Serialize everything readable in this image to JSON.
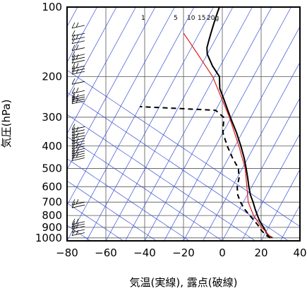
{
  "chart_data": {
    "type": "skew-t",
    "xlabel": "気温(実線), 露点(破線)",
    "ylabel": "気圧(hPa)",
    "xlim": [
      -80,
      40
    ],
    "ylim": [
      1030,
      100
    ],
    "yscale": "log",
    "x_ticks": [
      -80,
      -60,
      -40,
      -20,
      0,
      20,
      40
    ],
    "y_ticks": [
      100,
      200,
      300,
      400,
      500,
      600,
      700,
      800,
      900,
      1000
    ],
    "mixing_ratio_labels": [
      "1",
      "5",
      "10",
      "15",
      "20g"
    ],
    "colors": {
      "isotherm": "#3b4fd8",
      "line": "#000000",
      "reference": "#e02020",
      "grid": "#555555"
    },
    "series": [
      {
        "style": "solid",
        "points": [
          [
            1000,
            25
          ],
          [
            975,
            22
          ],
          [
            950,
            20.5
          ],
          [
            925,
            19
          ],
          [
            900,
            17.5
          ],
          [
            850,
            14
          ],
          [
            800,
            11
          ],
          [
            750,
            8
          ],
          [
            700,
            5
          ],
          [
            650,
            1.5
          ],
          [
            600,
            -1.5
          ],
          [
            550,
            -4.5
          ],
          [
            500,
            -8
          ],
          [
            450,
            -12
          ],
          [
            400,
            -17
          ],
          [
            350,
            -23
          ],
          [
            300,
            -30.5
          ],
          [
            250,
            -39
          ],
          [
            225,
            -44
          ],
          [
            200,
            -47.5
          ],
          [
            180,
            -54
          ],
          [
            160,
            -60
          ],
          [
            150,
            -62
          ],
          [
            140,
            -63
          ],
          [
            130,
            -64
          ],
          [
            120,
            -65
          ],
          [
            110,
            -66
          ],
          [
            100,
            -67
          ]
        ]
      },
      {
        "style": "dashed",
        "points": [
          [
            1000,
            24
          ],
          [
            975,
            21
          ],
          [
            950,
            19
          ],
          [
            925,
            17
          ],
          [
            900,
            15.5
          ],
          [
            850,
            11.5
          ],
          [
            800,
            7
          ],
          [
            750,
            2.5
          ],
          [
            700,
            -1.5
          ],
          [
            650,
            -5
          ],
          [
            600,
            -7.5
          ],
          [
            550,
            -9
          ],
          [
            500,
            -12
          ],
          [
            450,
            -18
          ],
          [
            400,
            -24
          ],
          [
            350,
            -30
          ],
          [
            310,
            -33
          ],
          [
            300,
            -34
          ],
          [
            280,
            -40
          ],
          [
            270,
            -80
          ]
        ]
      },
      {
        "style": "reference",
        "points": [
          [
            1000,
            24.5
          ],
          [
            900,
            16.5
          ],
          [
            800,
            9
          ],
          [
            700,
            2.5
          ],
          [
            600,
            -2.5
          ],
          [
            500,
            -8.5
          ],
          [
            400,
            -18
          ],
          [
            300,
            -31
          ],
          [
            250,
            -40
          ],
          [
            200,
            -51
          ],
          [
            150,
            -69
          ],
          [
            130,
            -78
          ]
        ]
      }
    ],
    "wind_barbs": {
      "pressures": [
        120,
        130,
        135,
        140,
        150,
        160,
        165,
        170,
        180,
        185,
        190,
        210,
        230,
        240,
        245,
        250,
        255,
        330,
        340,
        350,
        360,
        370,
        380,
        390,
        400,
        410,
        420,
        430,
        440,
        450,
        700,
        720,
        850,
        870,
        890,
        920,
        950
      ]
    }
  }
}
